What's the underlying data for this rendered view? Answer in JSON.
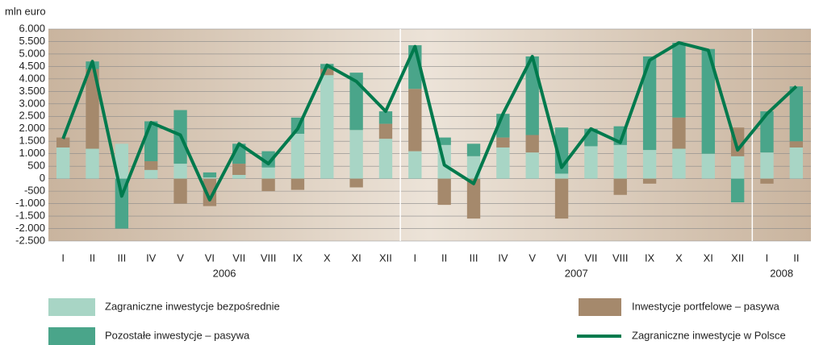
{
  "chart_data": {
    "type": "bar",
    "y_label": "mln euro",
    "categories": [
      "I",
      "II",
      "III",
      "IV",
      "V",
      "VI",
      "VII",
      "VIII",
      "IX",
      "X",
      "XI",
      "XII",
      "I",
      "II",
      "III",
      "IV",
      "V",
      "VI",
      "VII",
      "VIII",
      "IX",
      "X",
      "XI",
      "XII",
      "I",
      "II"
    ],
    "years": [
      "2006",
      "2007",
      "2008"
    ],
    "series": [
      {
        "name": "Zagraniczne inwestycje bezpośrednie",
        "color": "#a8d5c5",
        "values": [
          1250,
          1200,
          1400,
          350,
          600,
          50,
          150,
          450,
          1800,
          4150,
          1950,
          1600,
          1100,
          1350,
          900,
          1250,
          1050,
          200,
          1300,
          1350,
          1150,
          1200,
          1000,
          900,
          1050,
          1250
        ]
      },
      {
        "name": "Inwestycje portfelowe – pasywa",
        "color": "#a5896c",
        "values": [
          400,
          3200,
          0,
          350,
          -1000,
          -1100,
          450,
          -500,
          -450,
          250,
          -350,
          600,
          2500,
          -1050,
          -1600,
          400,
          700,
          -1600,
          0,
          -650,
          -200,
          1250,
          0,
          1150,
          -200,
          250
        ]
      },
      {
        "name": "Pozostałe inwestycje – pasywa",
        "color": "#4aa58a",
        "values": [
          0,
          300,
          -2000,
          1600,
          2150,
          200,
          800,
          650,
          650,
          200,
          2300,
          500,
          1750,
          300,
          500,
          950,
          3150,
          1850,
          700,
          750,
          3750,
          3000,
          4200,
          -950,
          1650,
          2200
        ]
      },
      {
        "name": "Zagraniczne inwestycje w Polsce",
        "color": "#007a4d",
        "type": "line",
        "values": [
          1600,
          4700,
          -700,
          2250,
          1750,
          -850,
          1400,
          600,
          2000,
          4550,
          3900,
          2700,
          5300,
          550,
          -200,
          2600,
          4900,
          450,
          2000,
          1450,
          4750,
          5450,
          5150,
          1150,
          2600,
          3700
        ]
      }
    ],
    "ylim": [
      -2500,
      6000
    ],
    "yticks": [
      {
        "value": 6000,
        "label": "6.000"
      },
      {
        "value": 5500,
        "label": "5.500"
      },
      {
        "value": 5000,
        "label": "5.000"
      },
      {
        "value": 4500,
        "label": "4.500"
      },
      {
        "value": 4000,
        "label": "4.000"
      },
      {
        "value": 3500,
        "label": "3.500"
      },
      {
        "value": 3000,
        "label": "3.000"
      },
      {
        "value": 2500,
        "label": "2.500"
      },
      {
        "value": 2000,
        "label": "2.000"
      },
      {
        "value": 1500,
        "label": "1.500"
      },
      {
        "value": 1000,
        "label": "1.000"
      },
      500,
      0,
      -500,
      {
        "value": -1000,
        "label": "-1.000"
      },
      {
        "value": -1500,
        "label": "-1.500"
      },
      {
        "value": -2000,
        "label": "-2.000"
      },
      {
        "value": -2500,
        "label": "-2.500"
      }
    ],
    "grid": true
  }
}
